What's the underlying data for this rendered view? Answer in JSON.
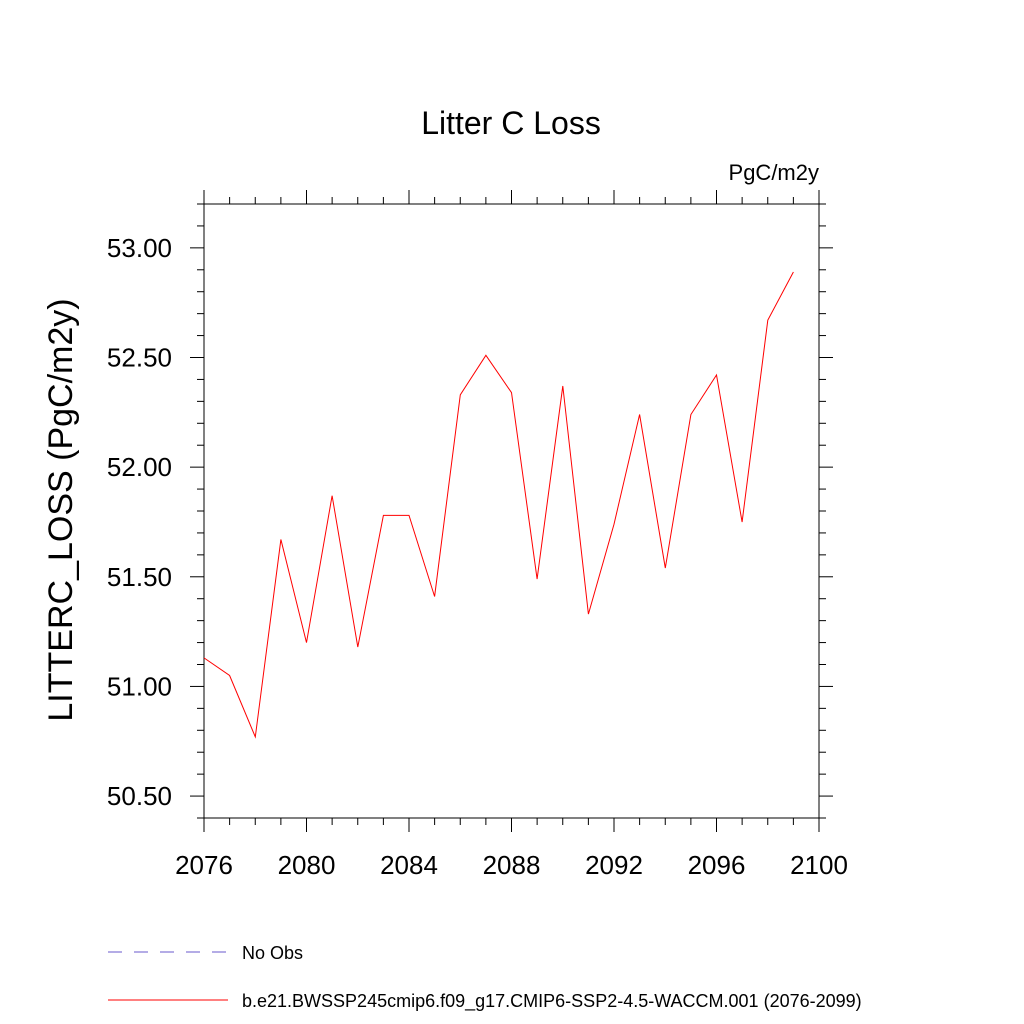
{
  "chart_data": {
    "type": "line",
    "title": "Litter C Loss",
    "units_label": "PgC/m2y",
    "ylabel": "LITTERC_LOSS  (PgC/m2y)",
    "xlabel": "",
    "xlim": [
      2076,
      2100
    ],
    "ylim": [
      50.4,
      53.2
    ],
    "x_ticks": [
      2076,
      2080,
      2084,
      2088,
      2092,
      2096,
      2100
    ],
    "x_tick_labels": [
      "2076",
      "2080",
      "2084",
      "2088",
      "2092",
      "2096",
      "2100"
    ],
    "y_ticks": [
      50.5,
      51.0,
      51.5,
      52.0,
      52.5,
      53.0
    ],
    "y_tick_labels": [
      "50.50",
      "51.00",
      "51.50",
      "52.00",
      "52.50",
      "53.00"
    ],
    "grid": false,
    "series": [
      {
        "name": "b.e21.BWSSP245cmip6.f09_g17.CMIP6-SSP2-4.5-WACCM.001 (2076-2099)",
        "color": "#ff0000",
        "x": [
          2076,
          2077,
          2078,
          2079,
          2080,
          2081,
          2082,
          2083,
          2084,
          2085,
          2086,
          2087,
          2088,
          2089,
          2090,
          2091,
          2092,
          2093,
          2094,
          2095,
          2096,
          2097,
          2098,
          2099
        ],
        "y": [
          51.13,
          51.05,
          50.77,
          51.67,
          51.2,
          51.87,
          51.18,
          51.78,
          51.78,
          51.41,
          52.33,
          52.51,
          52.34,
          51.49,
          52.37,
          51.33,
          51.74,
          52.24,
          51.54,
          52.24,
          52.42,
          51.75,
          52.67,
          52.89
        ]
      }
    ],
    "legend": [
      {
        "label": "No Obs",
        "color": "#6a5acd",
        "style": "dashed"
      },
      {
        "label": "b.e21.BWSSP245cmip6.f09_g17.CMIP6-SSP2-4.5-WACCM.001 (2076-2099)",
        "color": "#ff0000",
        "style": "solid"
      }
    ],
    "legend_placement": "bottom-left"
  }
}
